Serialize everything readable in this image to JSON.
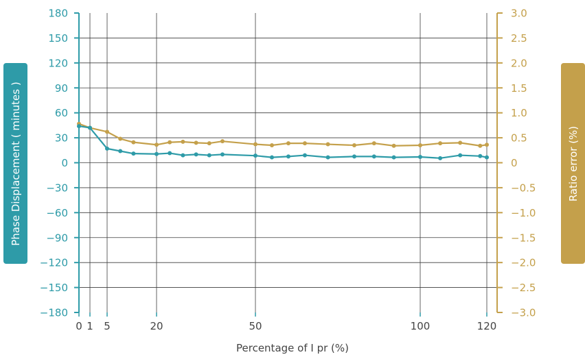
{
  "colors": {
    "phase": "#2e9ba8",
    "ratio": "#c4a04b",
    "grid": "#3c3c3c",
    "xtick_text": "#444444"
  },
  "chart_data": {
    "type": "line",
    "xlabel": "Percentage of I pr (%)",
    "ylabel_left": "Phase Displacement ( minutes )",
    "ylabel_right": "Ratio error (%)",
    "x_ticks": [
      0,
      1,
      5,
      20,
      50,
      100,
      120
    ],
    "x_tick_labels": [
      "0",
      "1",
      "5",
      "20",
      "50",
      "100",
      "120"
    ],
    "y_left_range": [
      -180,
      180
    ],
    "y_left_ticks": [
      180,
      150,
      120,
      90,
      60,
      30,
      0,
      -30,
      -60,
      -90,
      -120,
      -150,
      -180
    ],
    "y_left_tick_labels": [
      "180",
      "150",
      "120",
      "90",
      "60",
      "30",
      "0",
      "−30",
      "−60",
      "−90",
      "−120",
      "−150",
      "−180"
    ],
    "y_right_range": [
      -3.0,
      3.0
    ],
    "y_right_ticks": [
      3.0,
      2.5,
      2.0,
      1.5,
      1.0,
      0.5,
      0,
      -0.5,
      -1.0,
      -1.5,
      -2.0,
      -2.5,
      -3.0
    ],
    "y_right_tick_labels": [
      "3.0",
      "2.5",
      "2.0",
      "1.5",
      "1.0",
      "0.5",
      "0",
      "−0.5",
      "−1.0",
      "−1.5",
      "−2.0",
      "−2.5",
      "−3.0"
    ],
    "x_grid": [
      1,
      5,
      20,
      50,
      100,
      120
    ],
    "y_grid": [
      150,
      120,
      90,
      60,
      30,
      0,
      -30,
      -60,
      -90,
      -120,
      -150
    ],
    "series": [
      {
        "axis": "left",
        "color": "#2e9ba8",
        "points": [
          [
            0,
            44
          ],
          [
            1,
            42
          ],
          [
            5,
            17
          ],
          [
            9,
            14
          ],
          [
            13,
            11
          ],
          [
            20,
            10.5
          ],
          [
            24,
            11.5
          ],
          [
            28,
            9
          ],
          [
            32,
            10
          ],
          [
            36,
            9
          ],
          [
            40,
            10
          ],
          [
            50,
            8.5
          ],
          [
            55,
            6.5
          ],
          [
            60,
            7.5
          ],
          [
            65,
            9
          ],
          [
            72,
            6.5
          ],
          [
            80,
            7.5
          ],
          [
            86,
            7.5
          ],
          [
            92,
            6.5
          ],
          [
            100,
            7
          ],
          [
            106,
            5.5
          ],
          [
            112,
            9
          ],
          [
            118,
            8
          ],
          [
            120,
            6.5
          ]
        ]
      },
      {
        "axis": "right",
        "color": "#c4a04b",
        "points": [
          [
            0,
            0.78
          ],
          [
            1,
            0.7
          ],
          [
            5,
            0.62
          ],
          [
            9,
            0.48
          ],
          [
            13,
            0.41
          ],
          [
            20,
            0.36
          ],
          [
            24,
            0.41
          ],
          [
            28,
            0.42
          ],
          [
            32,
            0.4
          ],
          [
            36,
            0.39
          ],
          [
            40,
            0.43
          ],
          [
            50,
            0.37
          ],
          [
            55,
            0.35
          ],
          [
            60,
            0.39
          ],
          [
            65,
            0.39
          ],
          [
            72,
            0.37
          ],
          [
            80,
            0.35
          ],
          [
            86,
            0.39
          ],
          [
            92,
            0.34
          ],
          [
            100,
            0.35
          ],
          [
            106,
            0.39
          ],
          [
            112,
            0.4
          ],
          [
            118,
            0.34
          ],
          [
            120,
            0.36
          ]
        ]
      }
    ]
  }
}
